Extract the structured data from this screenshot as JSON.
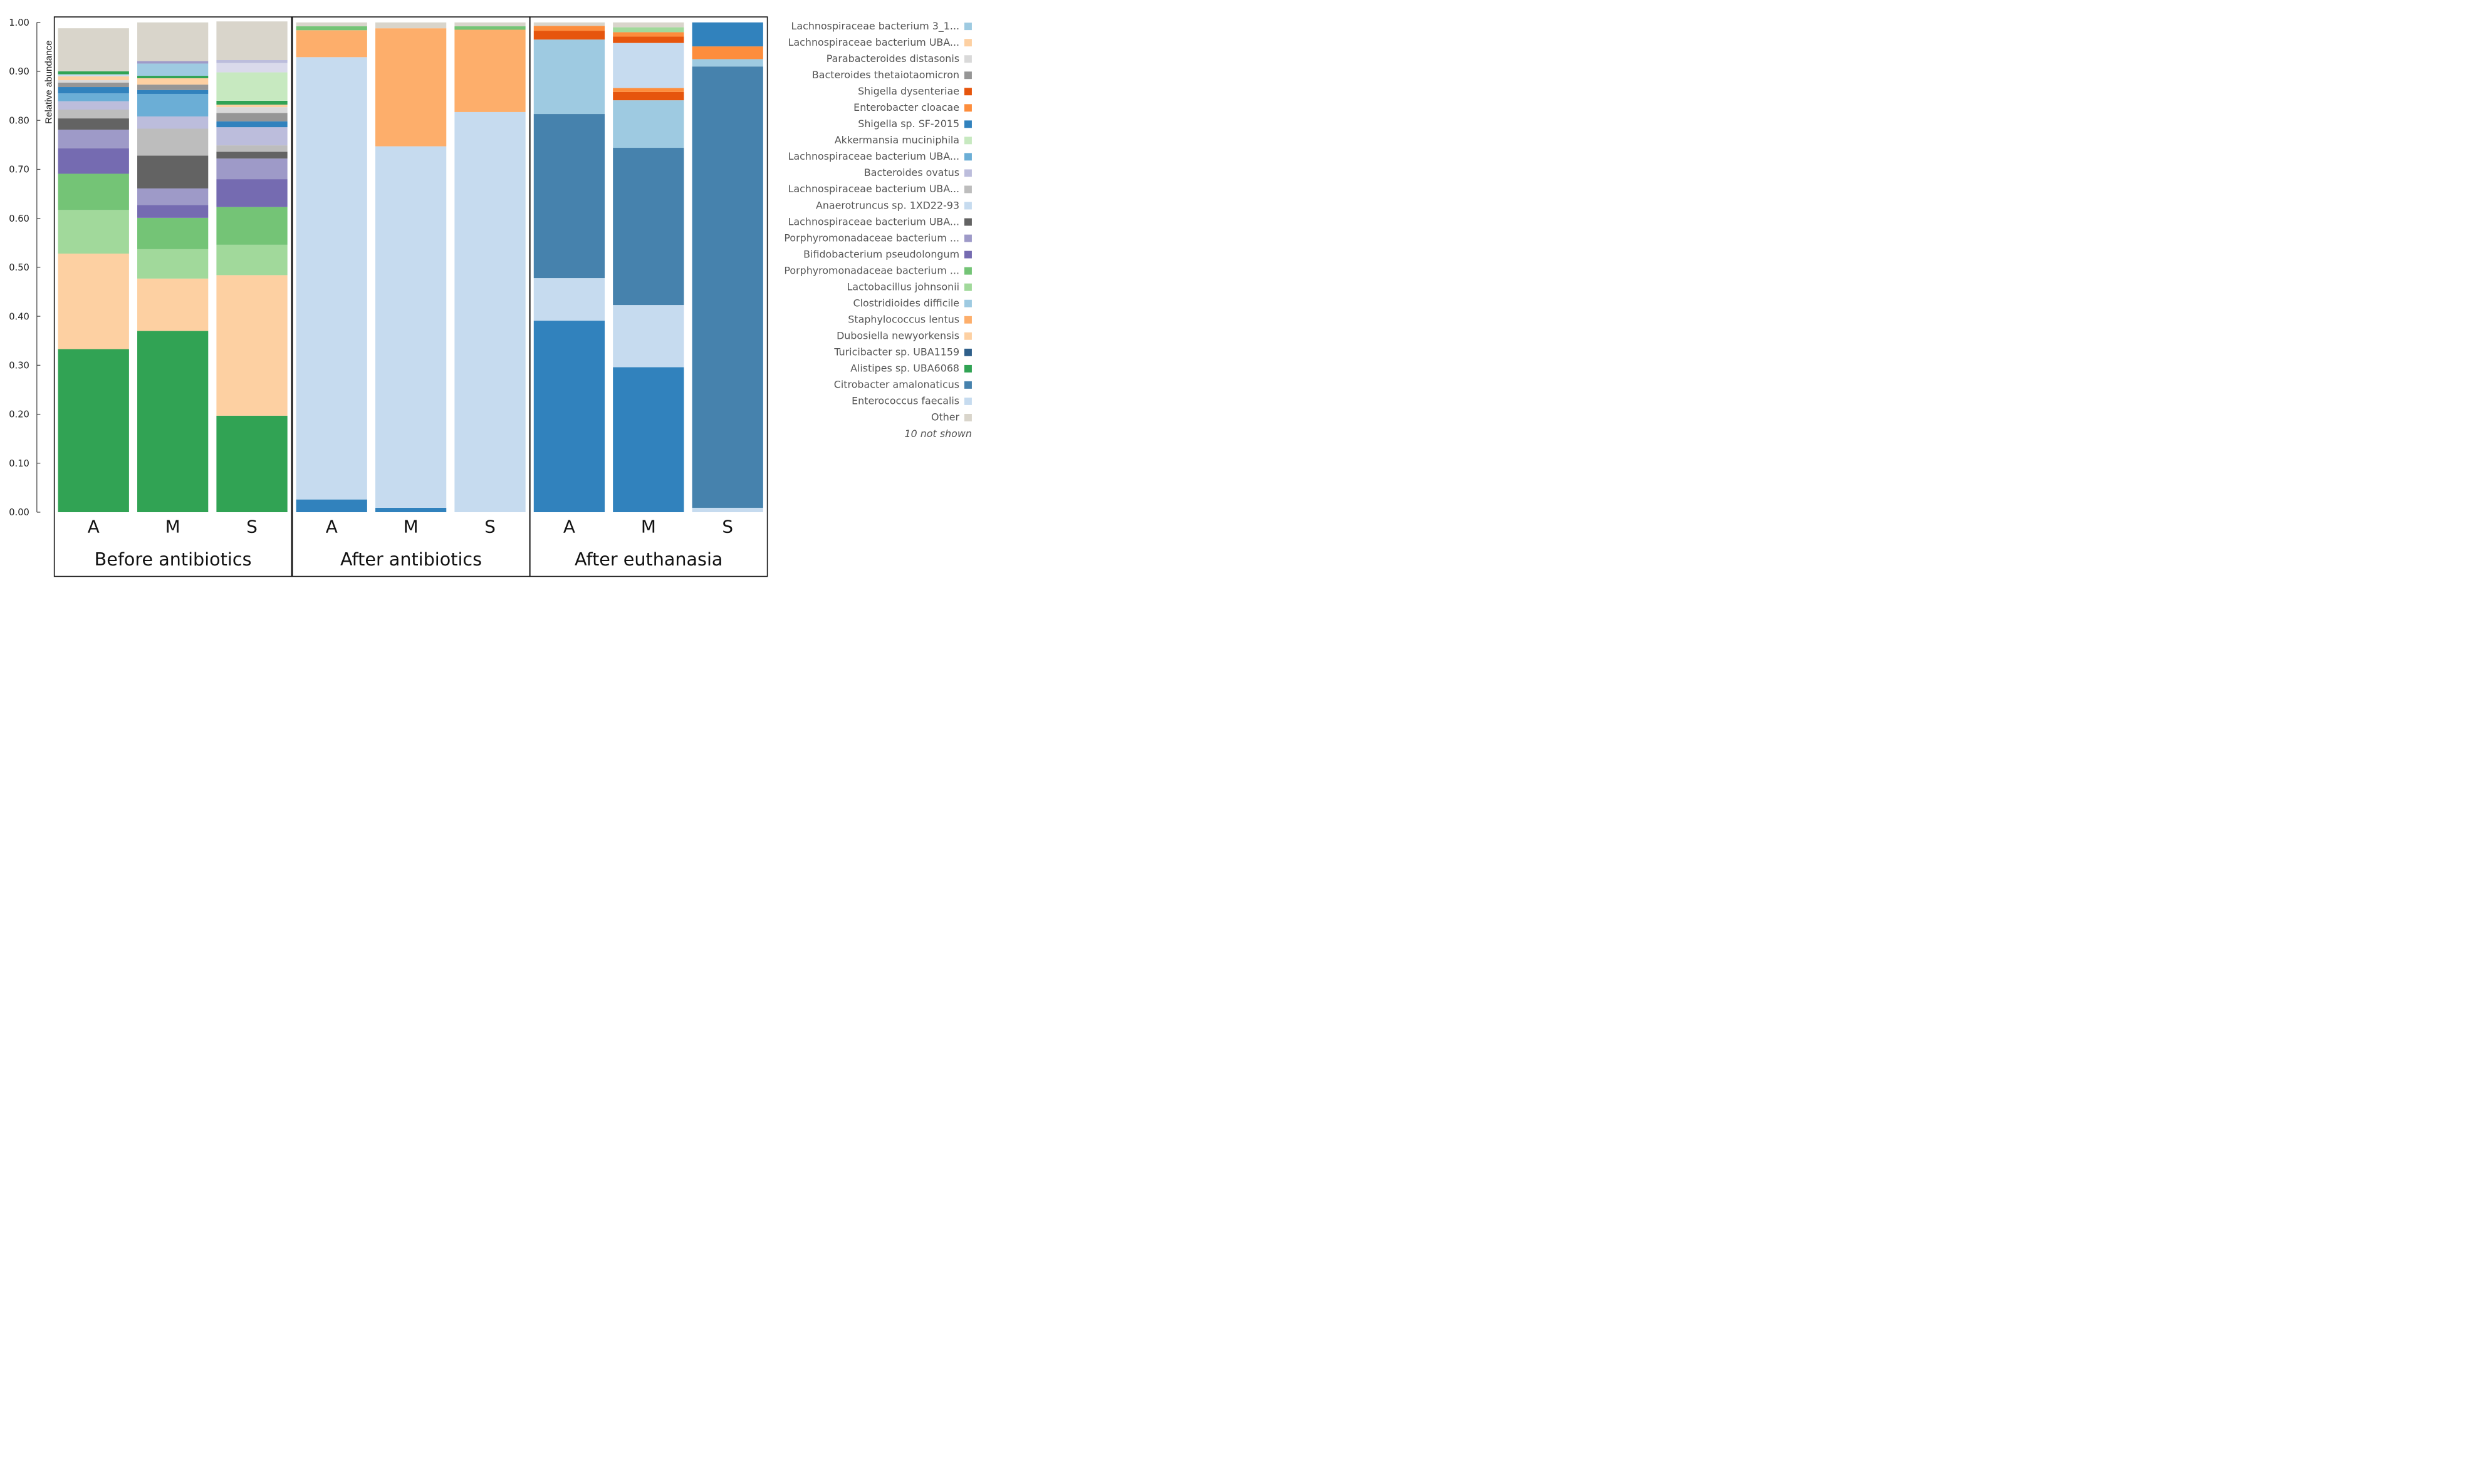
{
  "chart_data": {
    "type": "bar",
    "stacked": true,
    "ylabel": "Relative abundance",
    "ylim": [
      0,
      1
    ],
    "yticks": [
      "0.00",
      "0.10",
      "0.20",
      "0.30",
      "0.40",
      "0.50",
      "0.60",
      "0.70",
      "0.80",
      "0.90",
      "1.00"
    ],
    "groups": [
      {
        "label": "Before antibiotics",
        "bars": [
          {
            "category": "A",
            "segments": [
              {
                "c": "#31a354",
                "v": 0.333
              },
              {
                "c": "#fdd0a2",
                "v": 0.195
              },
              {
                "c": "#a1d99b",
                "v": 0.089
              },
              {
                "c": "#74c476",
                "v": 0.074
              },
              {
                "c": "#756bb1",
                "v": 0.052
              },
              {
                "c": "#9e9ac8",
                "v": 0.038
              },
              {
                "c": "#636363",
                "v": 0.023
              },
              {
                "c": "#bdbdbd",
                "v": 0.018
              },
              {
                "c": "#bcbddc",
                "v": 0.017
              },
              {
                "c": "#6baed6",
                "v": 0.016
              },
              {
                "c": "#3182bd",
                "v": 0.013
              },
              {
                "c": "#969696",
                "v": 0.009
              },
              {
                "c": "#d9d9d9",
                "v": 0.005
              },
              {
                "c": "#fdd0a2",
                "v": 0.008
              },
              {
                "c": "#c6dbef",
                "v": 0.004
              },
              {
                "c": "#31a354",
                "v": 0.006
              },
              {
                "c": "#d9d5cb",
                "v": 0.088
              }
            ]
          },
          {
            "category": "M",
            "segments": [
              {
                "c": "#31a354",
                "v": 0.37
              },
              {
                "c": "#fdd0a2",
                "v": 0.107
              },
              {
                "c": "#a1d99b",
                "v": 0.06
              },
              {
                "c": "#74c476",
                "v": 0.064
              },
              {
                "c": "#756bb1",
                "v": 0.026
              },
              {
                "c": "#9e9ac8",
                "v": 0.034
              },
              {
                "c": "#636363",
                "v": 0.067
              },
              {
                "c": "#bdbdbd",
                "v": 0.055
              },
              {
                "c": "#bcbddc",
                "v": 0.025
              },
              {
                "c": "#6baed6",
                "v": 0.046
              },
              {
                "c": "#3182bd",
                "v": 0.008
              },
              {
                "c": "#969696",
                "v": 0.011
              },
              {
                "c": "#fdd0a2",
                "v": 0.013
              },
              {
                "c": "#31a354",
                "v": 0.005
              },
              {
                "c": "#9ecae1",
                "v": 0.025
              },
              {
                "c": "#9e9ac8",
                "v": 0.005
              },
              {
                "c": "#d9d5cb",
                "v": 0.079
              }
            ]
          },
          {
            "category": "S",
            "segments": [
              {
                "c": "#31a354",
                "v": 0.197
              },
              {
                "c": "#fdd0a2",
                "v": 0.287
              },
              {
                "c": "#a1d99b",
                "v": 0.062
              },
              {
                "c": "#74c476",
                "v": 0.077
              },
              {
                "c": "#756bb1",
                "v": 0.057
              },
              {
                "c": "#9e9ac8",
                "v": 0.042
              },
              {
                "c": "#636363",
                "v": 0.014
              },
              {
                "c": "#bdbdbd",
                "v": 0.013
              },
              {
                "c": "#bcbddc",
                "v": 0.037
              },
              {
                "c": "#3182bd",
                "v": 0.012
              },
              {
                "c": "#969696",
                "v": 0.017
              },
              {
                "c": "#d9d9d9",
                "v": 0.012
              },
              {
                "c": "#fdd0a2",
                "v": 0.005
              },
              {
                "c": "#31a354",
                "v": 0.008
              },
              {
                "c": "#c7e9c0",
                "v": 0.058
              },
              {
                "c": "#dadaeb",
                "v": 0.019
              },
              {
                "c": "#bcbddc",
                "v": 0.006
              },
              {
                "c": "#d9d5cb",
                "v": 0.079
              }
            ]
          }
        ]
      },
      {
        "label": "After antibiotics",
        "bars": [
          {
            "category": "A",
            "segments": [
              {
                "c": "#3182bd",
                "v": 0.026
              },
              {
                "c": "#c6dbef",
                "v": 0.903
              },
              {
                "c": "#fdae6b",
                "v": 0.055
              },
              {
                "c": "#74c476",
                "v": 0.008
              },
              {
                "c": "#d9d5cb",
                "v": 0.008
              }
            ]
          },
          {
            "category": "M",
            "segments": [
              {
                "c": "#3182bd",
                "v": 0.009
              },
              {
                "c": "#c6dbef",
                "v": 0.738
              },
              {
                "c": "#fdae6b",
                "v": 0.241
              },
              {
                "c": "#d9d5cb",
                "v": 0.012
              }
            ]
          },
          {
            "category": "S",
            "segments": [
              {
                "c": "#c6dbef",
                "v": 0.817
              },
              {
                "c": "#fdae6b",
                "v": 0.168
              },
              {
                "c": "#74c476",
                "v": 0.007
              },
              {
                "c": "#d9d5cb",
                "v": 0.008
              }
            ]
          }
        ]
      },
      {
        "label": "After euthanasia",
        "bars": [
          {
            "category": "A",
            "segments": [
              {
                "c": "#3182bd",
                "v": 0.391
              },
              {
                "c": "#c6dbef",
                "v": 0.087
              },
              {
                "c": "#4682ad",
                "v": 0.335
              },
              {
                "c": "#9ecae1",
                "v": 0.152
              },
              {
                "c": "#e6550d",
                "v": 0.018
              },
              {
                "c": "#fd8d3c",
                "v": 0.01
              },
              {
                "c": "#d9d5cb",
                "v": 0.007
              }
            ]
          },
          {
            "category": "M",
            "segments": [
              {
                "c": "#3182bd",
                "v": 0.296
              },
              {
                "c": "#c6dbef",
                "v": 0.127
              },
              {
                "c": "#4682ad",
                "v": 0.321
              },
              {
                "c": "#9ecae1",
                "v": 0.097
              },
              {
                "c": "#e6550d",
                "v": 0.017
              },
              {
                "c": "#fd8d3c",
                "v": 0.008
              },
              {
                "c": "#c6dbef",
                "v": 0.092
              },
              {
                "c": "#e6550d",
                "v": 0.013
              },
              {
                "c": "#fd8d3c",
                "v": 0.009
              },
              {
                "c": "#a1d99b",
                "v": 0.01
              },
              {
                "c": "#d9d5cb",
                "v": 0.01
              }
            ]
          },
          {
            "category": "S",
            "segments": [
              {
                "c": "#c6dbef",
                "v": 0.009
              },
              {
                "c": "#4682ad",
                "v": 0.901
              },
              {
                "c": "#9ecae1",
                "v": 0.015
              },
              {
                "c": "#fd8d3c",
                "v": 0.026
              },
              {
                "c": "#3182bd",
                "v": 0.049
              }
            ]
          }
        ]
      }
    ],
    "legend": [
      {
        "label": "Lachnospiraceae bacterium 3_1...",
        "color": "#9ecae1"
      },
      {
        "label": "Lachnospiraceae bacterium UBA...",
        "color": "#fdd0a2"
      },
      {
        "label": "Parabacteroides distasonis",
        "color": "#d9d9d9"
      },
      {
        "label": "Bacteroides thetaiotaomicron",
        "color": "#969696"
      },
      {
        "label": "Shigella dysenteriae",
        "color": "#e6550d"
      },
      {
        "label": "Enterobacter cloacae",
        "color": "#fd8d3c"
      },
      {
        "label": "Shigella sp. SF-2015",
        "color": "#3182bd"
      },
      {
        "label": "Akkermansia muciniphila",
        "color": "#c7e9c0"
      },
      {
        "label": "Lachnospiraceae bacterium UBA...",
        "color": "#6baed6"
      },
      {
        "label": "Bacteroides ovatus",
        "color": "#bcbddc"
      },
      {
        "label": "Lachnospiraceae bacterium UBA...",
        "color": "#bdbdbd"
      },
      {
        "label": "Anaerotruncus sp. 1XD22-93",
        "color": "#c6dbef"
      },
      {
        "label": "Lachnospiraceae bacterium UBA...",
        "color": "#636363"
      },
      {
        "label": "Porphyromonadaceae bacterium ...",
        "color": "#9e9ac8"
      },
      {
        "label": "Bifidobacterium pseudolongum",
        "color": "#756bb1"
      },
      {
        "label": "Porphyromonadaceae bacterium ...",
        "color": "#74c476"
      },
      {
        "label": "Lactobacillus johnsonii",
        "color": "#a1d99b"
      },
      {
        "label": "Clostridioides difficile",
        "color": "#9ecae1"
      },
      {
        "label": "Staphylococcus lentus",
        "color": "#fdae6b"
      },
      {
        "label": "Dubosiella newyorkensis",
        "color": "#fdd0a2"
      },
      {
        "label": "Turicibacter sp. UBA1159",
        "color": "#2f5f8a"
      },
      {
        "label": "Alistipes sp. UBA6068",
        "color": "#31a354"
      },
      {
        "label": "Citrobacter amalonaticus",
        "color": "#4682ad"
      },
      {
        "label": "Enterococcus faecalis",
        "color": "#c6dbef"
      },
      {
        "label": "Other",
        "color": "#d9d5cb"
      }
    ],
    "legend_note": "10 not shown"
  }
}
